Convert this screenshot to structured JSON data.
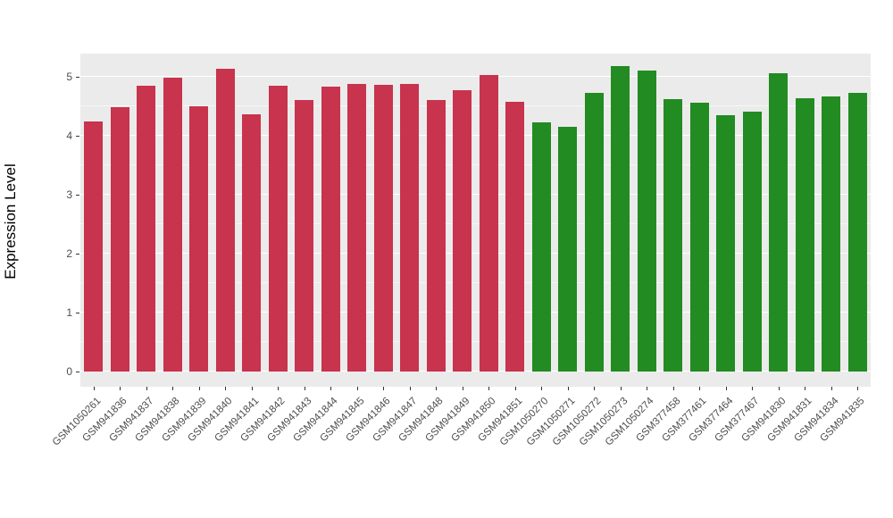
{
  "chart_data": {
    "type": "bar",
    "title": "",
    "xlabel": "",
    "ylabel": "Expression Level",
    "ylim": [
      0,
      5.2
    ],
    "y_ticks": [
      0,
      1,
      2,
      3,
      4,
      5
    ],
    "grid": true,
    "panel_background": "#ebebeb",
    "gridline_color": "#ffffff",
    "group_colors": {
      "group1": "#c8334d",
      "group2": "#228b22"
    },
    "group_split_index": 17,
    "categories": [
      "GSM1050261",
      "GSM941836",
      "GSM941837",
      "GSM941838",
      "GSM941839",
      "GSM941840",
      "GSM941841",
      "GSM941842",
      "GSM941843",
      "GSM941844",
      "GSM941845",
      "GSM941846",
      "GSM941847",
      "GSM941848",
      "GSM941849",
      "GSM941850",
      "GSM941851",
      "GSM1050270",
      "GSM1050271",
      "GSM1050272",
      "GSM1050273",
      "GSM1050274",
      "GSM377458",
      "GSM377461",
      "GSM377464",
      "GSM377467",
      "GSM941830",
      "GSM941831",
      "GSM941834",
      "GSM941835"
    ],
    "values": [
      4.25,
      4.48,
      4.85,
      4.98,
      4.5,
      5.13,
      4.37,
      4.85,
      4.6,
      4.84,
      4.88,
      4.86,
      4.88,
      4.6,
      4.77,
      5.03,
      4.57,
      4.22,
      4.15,
      4.73,
      5.18,
      5.1,
      4.62,
      4.56,
      4.35,
      4.41,
      5.06,
      4.63,
      4.66,
      4.72
    ]
  }
}
